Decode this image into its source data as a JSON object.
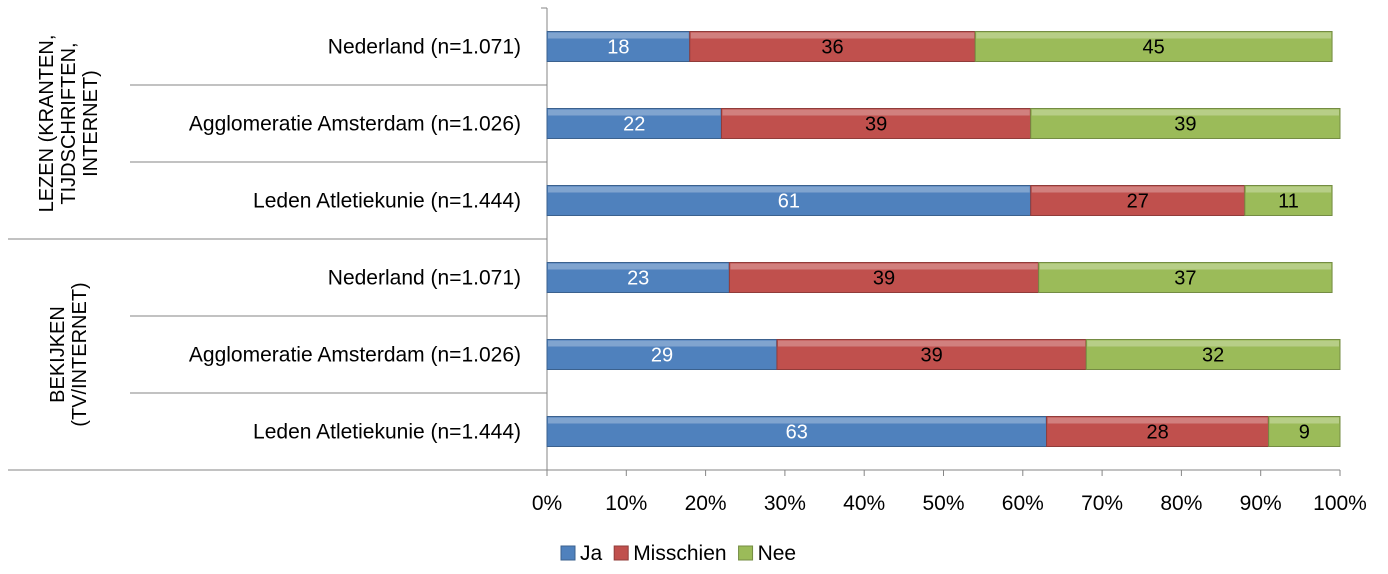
{
  "chart_data": {
    "type": "bar",
    "orientation": "horizontal",
    "stacked": true,
    "percent": true,
    "groups": [
      {
        "label": "LEZEN (KRANTEN, TIJDSCHRIFTEN, INTERNET)",
        "label_lines": [
          "LEZEN (KRANTEN,",
          "TIJDSCHRIFTEN,",
          "INTERNET)"
        ],
        "categories": [
          "Nederland (n=1.071)",
          "Agglomeratie Amsterdam (n=1.026)",
          "Leden Atletiekunie (n=1.444)"
        ]
      },
      {
        "label": "BEKIJKEN (TV/INTERNET)",
        "label_lines": [
          "BEKIJKEN",
          "(TV/INTERNET)"
        ],
        "categories": [
          "Nederland (n=1.071)",
          "Agglomeratie Amsterdam (n=1.026)",
          "Leden Atletiekunie (n=1.444)"
        ]
      }
    ],
    "series": [
      {
        "name": "Ja",
        "color": "#4f81bd",
        "label_color": "#ffffff",
        "values": [
          18,
          22,
          61,
          23,
          29,
          63
        ]
      },
      {
        "name": "Misschien",
        "color": "#c0504d",
        "label_color": "#000000",
        "values": [
          36,
          39,
          27,
          39,
          39,
          28
        ]
      },
      {
        "name": "Nee",
        "color": "#9bbb59",
        "label_color": "#000000",
        "values": [
          45,
          39,
          11,
          37,
          32,
          9
        ]
      }
    ],
    "xlim": [
      0,
      100
    ],
    "xticks": [
      "0%",
      "10%",
      "20%",
      "30%",
      "40%",
      "50%",
      "60%",
      "70%",
      "80%",
      "90%",
      "100%"
    ],
    "legend_position": "bottom",
    "grid": false
  }
}
